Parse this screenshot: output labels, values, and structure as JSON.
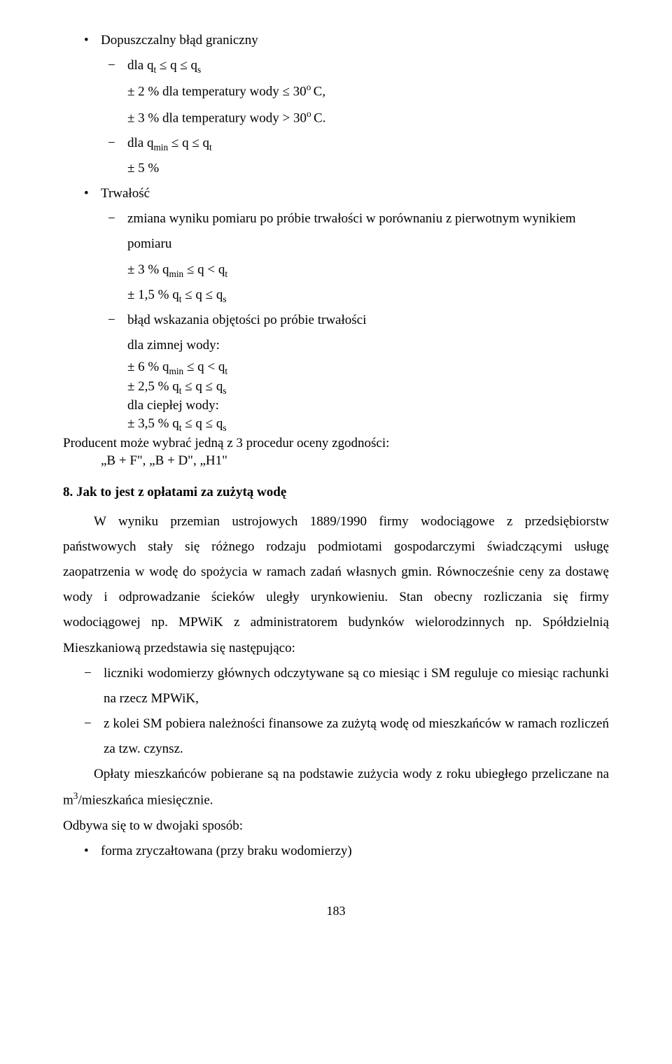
{
  "b1": "Dopuszczalny błąd graniczny",
  "d1": "dla q",
  "d1_sub1": "t",
  "d1_mid": " ≤ q ≤ q",
  "d1_sub2": "s",
  "l1a": "± 2 % dla temperatury wody ≤ 30",
  "l1a_sup": "o ",
  "l1a_end": "C,",
  "l1b": "± 3 % dla temperatury wody > 30",
  "l1b_sup": "o ",
  "l1b_end": "C.",
  "d2": "dla q",
  "d2_sub1": "min",
  "d2_mid": " ≤ q ≤ q",
  "d2_sub2": "t",
  "l2": "± 5 %",
  "b2": "Trwałość",
  "d3a": "zmiana wyniku pomiaru po próbie trwałości w porównaniu z pierwotnym wynikiem",
  "d3b": "pomiaru",
  "l3a": "± 3 %   q",
  "l3a_sub1": "min",
  "l3a_mid": " ≤ q < q",
  "l3a_sub2": "t",
  "l3b": "± 1,5 %   q",
  "l3b_sub1": "t",
  "l3b_mid": " ≤ q ≤ q",
  "l3b_sub2": "s",
  "d4": "błąd wskazania objętości po próbie trwałości",
  "l4": "dla zimnej wody:",
  "l5a": "± 6 %   q",
  "l5a_sub1": "min",
  "l5a_mid": " ≤ q < q",
  "l5a_sub2": "t",
  "l5b": "± 2,5 %   q",
  "l5b_sub1": "t",
  "l5b_mid": " ≤ q ≤ q",
  "l5b_sub2": "s",
  "l5c": "dla ciepłej wody:",
  "l5d": "± 3,5 %   q",
  "l5d_sub1": "t",
  "l5d_mid": " ≤ q ≤ q",
  "l5d_sub2": "s",
  "prod1": "Producent może wybrać jedną z 3 procedur oceny zgodności:",
  "prod2": "„B + F\", „B + D\", „H1\"",
  "sec8": "8.   Jak to jest z opłatami za zużytą wodę",
  "p1": "W wyniku przemian ustrojowych 1889/1990 firmy wodociągowe z przedsiębiorstw państwowych stały się różnego rodzaju podmiotami gospodarczymi świadczącymi usługę zaopatrzenia w wodę do spożycia w ramach zadań własnych gmin. Równocześnie ceny za dostawę wody i odprowadzanie ścieków uległy urynkowieniu. Stan obecny rozliczania się firmy wodociągowej np. MPWiK z administratorem budynków wielorodzinnych np. Spółdzielnią Mieszkaniową przedstawia się następująco:",
  "li1": "liczniki wodomierzy głównych odczytywane są co miesiąc i SM reguluje co miesiąc rachunki na rzecz MPWiK,",
  "li2": "z kolei SM pobiera należności finansowe za zużytą wodę od mieszkańców w ramach rozliczeń za tzw. czynsz.",
  "p2a": "Opłaty mieszkańców pobierane są na podstawie zużycia wody z roku ubiegłego przeliczane na m",
  "p2_sup": "3",
  "p2b": "/mieszkańca miesięcznie.",
  "p3": "Odbywa się to w dwojaki sposób:",
  "b3": "forma zryczałtowana (przy braku wodomierzy)",
  "pagenum": "183"
}
